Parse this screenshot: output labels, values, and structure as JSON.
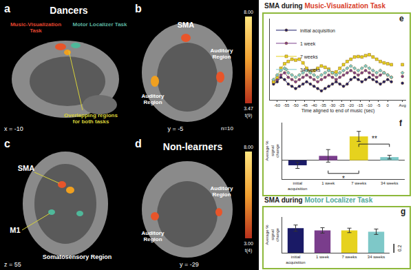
{
  "brain_panels": [
    {
      "letter": "a",
      "group": "Dancers",
      "coordinate": "x = -10",
      "tasks": [
        {
          "text": "Music-Visualization Task",
          "color": "#e0452f"
        },
        {
          "text": "Motor Localizer Task",
          "color": "#5bb5a0"
        }
      ],
      "overlap": {
        "text": "Overlapping regions for both tasks",
        "color": "#d8d23a"
      }
    },
    {
      "letter": "b",
      "regions": [
        "SMA",
        "Auditory Region",
        "Auditory Region"
      ],
      "n": "n=10",
      "coordinate": "y = -5",
      "colorbar": [
        "8.00",
        "3.47",
        "t(9)"
      ]
    },
    {
      "letter": "c",
      "regions": [
        "SMA",
        "M1",
        "Somatosensory Region"
      ],
      "coordinate": "z = 55"
    },
    {
      "letter": "d",
      "group": "Non-learners",
      "regions": [
        "Auditory Region",
        "Auditory Region"
      ],
      "coordinate": "y = -29",
      "colorbar": [
        "8.00",
        "3.00",
        "t(4)"
      ]
    }
  ],
  "chart_data": [
    {
      "panel": "e",
      "type": "line",
      "title_parts": [
        {
          "text": "SMA during ",
          "color": "#222222"
        },
        {
          "text": "Music-Visualization Task",
          "color": "#d9402b"
        }
      ],
      "x_label": "Time aligned to end of music (sec)",
      "x": [
        -62,
        -60,
        -58,
        -56,
        -54,
        -52,
        -50,
        -48,
        -46,
        -44,
        -42,
        -40,
        -38,
        -36,
        -34,
        -32,
        -30,
        -28,
        -26,
        -24,
        -22,
        -20,
        -18,
        -16,
        -14,
        -12,
        -10,
        -8,
        -6,
        -4,
        -2,
        0,
        2,
        5,
        8
      ],
      "series": [
        {
          "name": "initial acquisition",
          "color": "#1a1a66",
          "marker": "circle",
          "values": [
            -0.05,
            0.0,
            0.1,
            0.05,
            -0.05,
            -0.1,
            -0.15,
            -0.1,
            -0.05,
            0.0,
            -0.05,
            -0.1,
            -0.15,
            -0.2,
            -0.15,
            -0.1,
            -0.05,
            0.0,
            -0.05,
            -0.1,
            -0.05,
            0.05,
            0.1,
            0.05,
            0.0,
            0.05,
            0.1,
            0.05,
            0.0,
            -0.05,
            0.0,
            0.05,
            0.0,
            null,
            -0.03
          ]
        },
        {
          "name": "1 week",
          "color": "#7a3d8c",
          "marker": "circle",
          "values": [
            0.0,
            0.05,
            0.15,
            0.2,
            0.1,
            0.05,
            0.0,
            0.05,
            0.1,
            0.15,
            0.1,
            0.05,
            0.0,
            0.05,
            0.1,
            0.15,
            0.1,
            0.05,
            0.1,
            0.15,
            0.2,
            0.25,
            0.2,
            0.15,
            0.2,
            0.25,
            0.2,
            0.15,
            0.1,
            0.15,
            0.2,
            0.15,
            0.1,
            null,
            0.12
          ]
        },
        {
          "name": "7 weeks",
          "color": "#e6d21e",
          "marker": "square",
          "values": [
            0.0,
            0.1,
            0.3,
            0.4,
            0.45,
            0.5,
            0.48,
            0.5,
            0.42,
            0.3,
            0.22,
            0.25,
            0.3,
            0.35,
            0.32,
            0.28,
            0.2,
            0.22,
            0.3,
            0.38,
            0.45,
            0.5,
            0.55,
            0.56,
            0.55,
            0.58,
            0.6,
            0.55,
            0.5,
            0.45,
            0.42,
            0.4,
            0.38,
            null,
            0.38
          ]
        },
        {
          "name": "34 weeks",
          "color": "#7ec8c8",
          "marker": "diamond",
          "values": [
            0.05,
            0.15,
            0.25,
            0.3,
            0.2,
            0.15,
            0.1,
            0.15,
            0.2,
            0.25,
            0.2,
            0.15,
            0.1,
            0.15,
            0.2,
            0.25,
            0.2,
            0.15,
            0.2,
            0.25,
            0.3,
            0.35,
            0.3,
            0.25,
            0.3,
            0.35,
            0.3,
            0.25,
            0.2,
            0.25,
            0.2,
            0.15,
            0.1,
            null,
            0.2
          ]
        }
      ],
      "xlim": [
        -64,
        10
      ],
      "xticks": [
        -60,
        -55,
        -50,
        -45,
        -40,
        -35,
        -30,
        -25,
        -20,
        -15,
        -10,
        -5,
        0,
        {
          "value": 8,
          "label": "Avg"
        }
      ],
      "ylim": [
        -0.4,
        1.4
      ],
      "tick_labels": "x",
      "legend": "top left",
      "grid": false
    },
    {
      "panel": "f",
      "type": "bar",
      "categories": [
        "initial acquisition",
        "1 week",
        "7 weeks",
        "34 weeks"
      ],
      "values": [
        -0.08,
        0.07,
        0.38,
        0.05
      ],
      "errors": [
        0.05,
        0.1,
        0.08,
        0.03
      ],
      "colors": [
        "#1a1a66",
        "#7a3d8c",
        "#e6d21e",
        "#7ec8c8"
      ],
      "y_label": "Average % signal change",
      "ylim": [
        -0.3,
        0.6
      ],
      "tick_labels": "x",
      "grid": false,
      "annotations": [
        {
          "text": "*",
          "from": "1 week",
          "to": "7 weeks"
        },
        {
          "text": "**",
          "from": "7 weeks",
          "to": "34 weeks"
        }
      ]
    },
    {
      "panel": "g",
      "type": "bar",
      "title_parts": [
        {
          "text": "SMA during ",
          "color": "#222222"
        },
        {
          "text": "Motor Localizer Task",
          "color": "#4fa89a"
        }
      ],
      "categories": [
        "initial acquisition",
        "1 week",
        "7 weeks",
        "34 weeks"
      ],
      "values": [
        0.55,
        0.5,
        0.5,
        0.47
      ],
      "errors": [
        0.07,
        0.06,
        0.05,
        0.06
      ],
      "colors": [
        "#1a1a66",
        "#7a3d8c",
        "#e6d21e",
        "#7ec8c8"
      ],
      "y_label": "Average % signal change",
      "ylim": [
        0,
        0.8
      ],
      "tick_labels": "x",
      "grid": false,
      "scale_bar": 0.2
    }
  ]
}
